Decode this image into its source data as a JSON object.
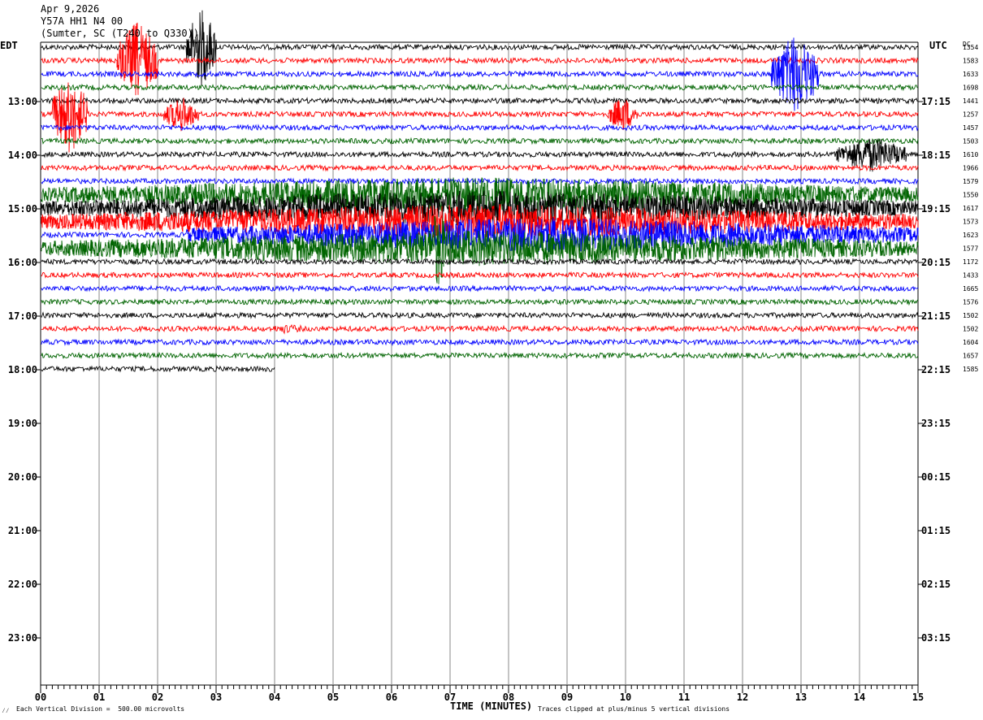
{
  "header": {
    "date": "Apr 9,2026",
    "station": "Y57A HH1 N4 00",
    "location": "(Sumter, SC (T240 to Q330))"
  },
  "labels": {
    "left_tz": "EDT",
    "right_tz": "UTC",
    "dc": "DC",
    "x_title": "TIME (MINUTES)",
    "scale_note": "Each Vertical Division =  500.00 microvolts",
    "clip_note": "Traces clipped at plus/minus 5 vertical divisions"
  },
  "chart_data": {
    "type": "line",
    "title": "",
    "xlabel": "TIME (MINUTES)",
    "xlim": [
      0,
      15
    ],
    "x_ticks": [
      "00",
      "01",
      "02",
      "03",
      "04",
      "05",
      "06",
      "07",
      "08",
      "09",
      "10",
      "11",
      "12",
      "13",
      "14",
      "15"
    ],
    "row_colors": [
      "#000000",
      "#ff0000",
      "#0000ff",
      "#006400"
    ],
    "left_hour_labels": [
      "13:00",
      "14:00",
      "15:00",
      "16:00",
      "17:00",
      "18:00",
      "19:00",
      "20:00",
      "21:00",
      "22:00",
      "23:00"
    ],
    "right_hour_labels": [
      "17:15",
      "18:15",
      "19:15",
      "20:15",
      "21:15",
      "22:15",
      "23:15",
      "00:15",
      "01:15",
      "02:15",
      "03:15"
    ],
    "dc_values": [
      "1354",
      "1583",
      "1633",
      "1698",
      "1441",
      "1257",
      "1457",
      "1503",
      "1610",
      "1966",
      "1579",
      "1550",
      "1617",
      "1573",
      "1623",
      "1577",
      "1172",
      "1433",
      "1665",
      "1576",
      "1502",
      "1502",
      "1604",
      "1657",
      "1585"
    ],
    "trace_count": 25,
    "last_trace_end_minute": 4.0,
    "events": [
      {
        "row": 0,
        "start_min": 2.5,
        "end_min": 3.0,
        "amp": "clipped"
      },
      {
        "row": 1,
        "start_min": 1.3,
        "end_min": 2.0,
        "amp": "clipped"
      },
      {
        "row": 2,
        "start_min": 12.5,
        "end_min": 13.3,
        "amp": "clipped"
      },
      {
        "row": 5,
        "start_min": 0.2,
        "end_min": 0.8,
        "amp": "clipped"
      },
      {
        "row": 5,
        "start_min": 2.1,
        "end_min": 2.7,
        "amp": "large"
      },
      {
        "row": 5,
        "start_min": 9.7,
        "end_min": 10.2,
        "amp": "large"
      },
      {
        "row": 8,
        "start_min": 13.6,
        "end_min": 14.8,
        "amp": "large"
      },
      {
        "row": 11,
        "start_min": 0.0,
        "end_min": 15.0,
        "amp": "large"
      },
      {
        "row": 12,
        "start_min": 0.0,
        "end_min": 15.0,
        "amp": "large"
      },
      {
        "row": 13,
        "start_min": 0.0,
        "end_min": 15.0,
        "amp": "large"
      },
      {
        "row": 14,
        "start_min": 2.5,
        "end_min": 15.0,
        "amp": "large"
      },
      {
        "row": 15,
        "start_min": 0.0,
        "end_min": 15.0,
        "amp": "large"
      },
      {
        "row": 15,
        "start_min": 6.6,
        "end_min": 7.0,
        "amp": "clipped"
      },
      {
        "row": 21,
        "start_min": 3.8,
        "end_min": 4.6,
        "amp": "small"
      }
    ]
  }
}
